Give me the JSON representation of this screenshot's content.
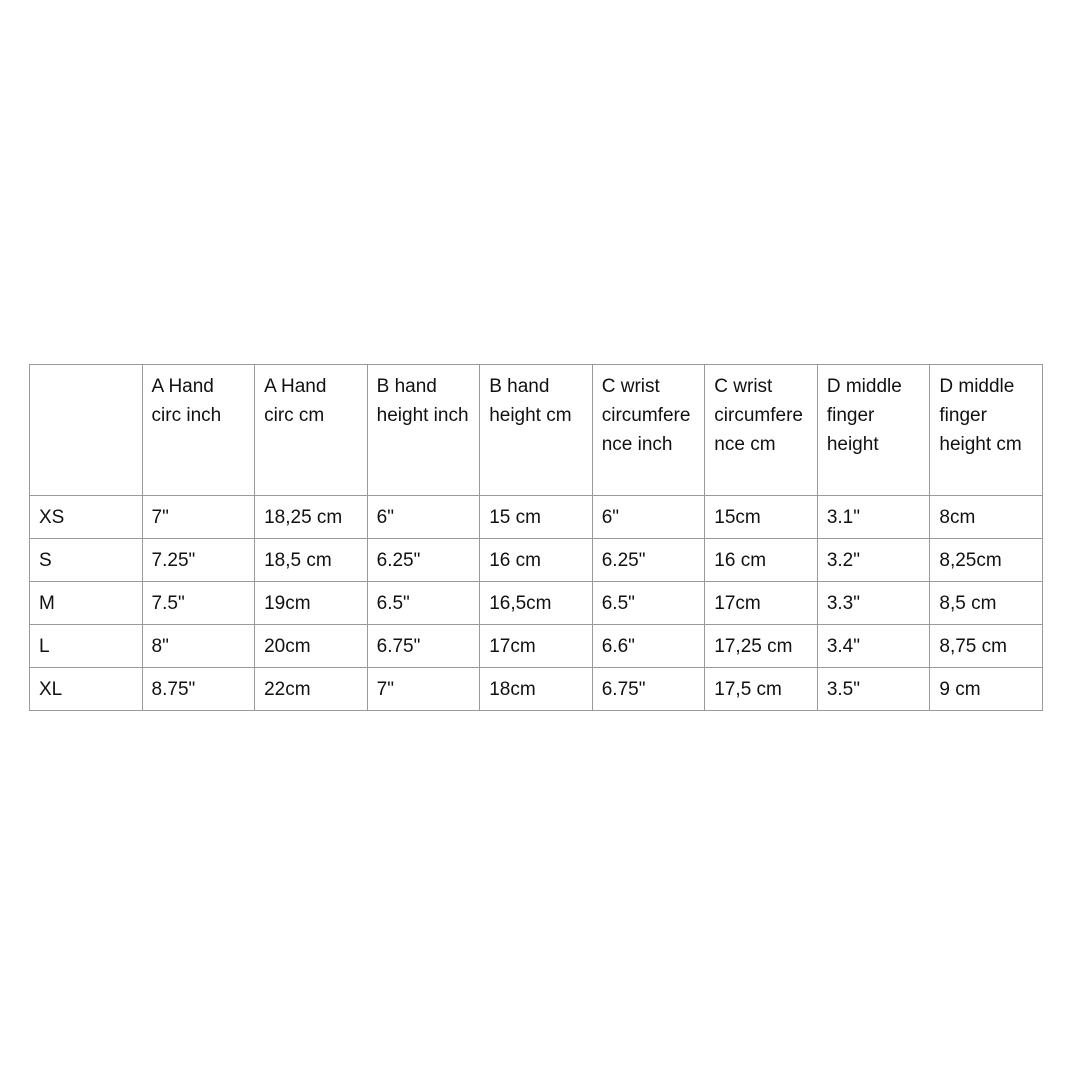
{
  "table": {
    "columns": [
      "",
      "A Hand circ inch",
      "A Hand circ cm",
      "B hand height inch",
      "B hand height cm",
      "C wrist circumference inch",
      "C wrist circumference cm",
      "D middle finger height",
      "D middle finger height cm"
    ],
    "rows": [
      [
        "XS",
        "7\"",
        "18,25 cm",
        "6\"",
        "15 cm",
        "6\"",
        "15cm",
        "3.1\"",
        "8cm"
      ],
      [
        "S",
        "7.25\"",
        "18,5 cm",
        "6.25\"",
        "16 cm",
        "6.25\"",
        "16 cm",
        "3.2\"",
        "8,25cm"
      ],
      [
        "M",
        "7.5\"",
        "19cm",
        "6.5\"",
        "16,5cm",
        "6.5\"",
        "17cm",
        "3.3\"",
        "8,5 cm"
      ],
      [
        "L",
        "8\"",
        "20cm",
        "6.75\"",
        "17cm",
        "6.6\"",
        "17,25 cm",
        "3.4\"",
        "8,75 cm"
      ],
      [
        "XL",
        "8.75\"",
        "22cm",
        "7\"",
        "18cm",
        "6.75\"",
        "17,5 cm",
        "3.5\"",
        "9 cm"
      ]
    ]
  }
}
